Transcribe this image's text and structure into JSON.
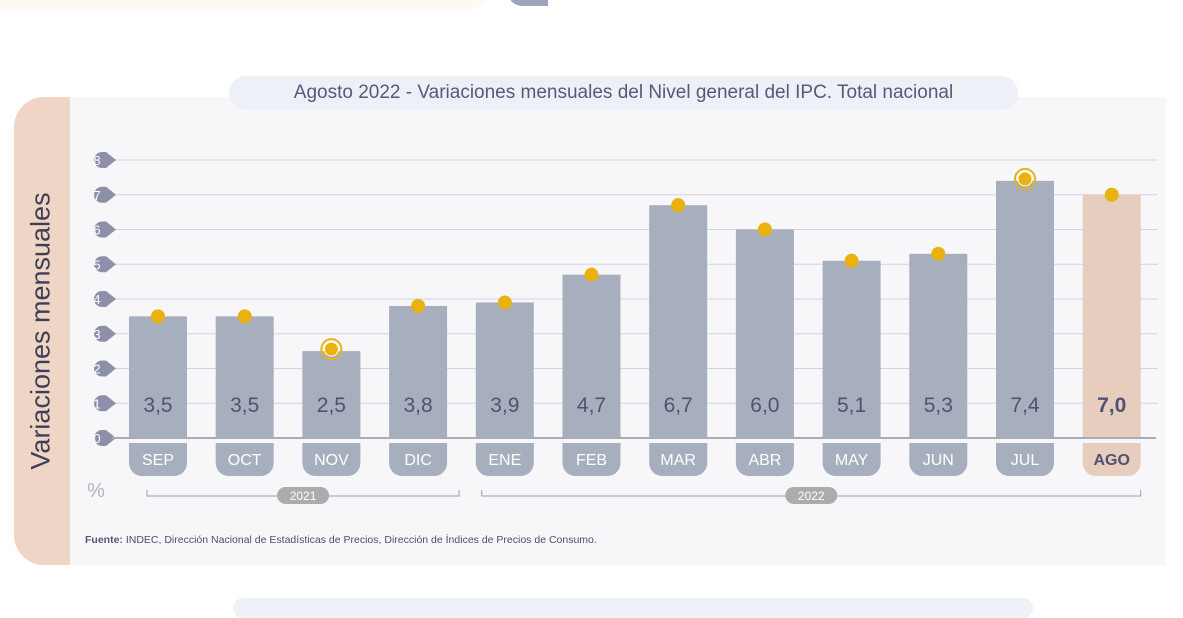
{
  "chart_data": {
    "type": "bar",
    "title": "Agosto 2022 - Variaciones mensuales del Nivel general del IPC. Total nacional",
    "ylabel": "Variaciones mensuales",
    "yunit": "%",
    "ylim": [
      0,
      8
    ],
    "yticks": [
      "0",
      "1",
      "2",
      "3",
      "4",
      "5",
      "6",
      "7",
      "8"
    ],
    "grid": true,
    "categories": [
      "SEP",
      "OCT",
      "NOV",
      "DIC",
      "ENE",
      "FEB",
      "MAR",
      "ABR",
      "MAY",
      "JUN",
      "JUL",
      "AGO"
    ],
    "values": [
      3.5,
      3.5,
      2.5,
      3.8,
      3.9,
      4.7,
      6.7,
      6.0,
      5.1,
      5.3,
      7.4,
      7.0
    ],
    "value_labels": [
      "3,5",
      "3,5",
      "2,5",
      "3,8",
      "3,9",
      "4,7",
      "6,7",
      "6,0",
      "5,1",
      "5,3",
      "7,4",
      "7,0"
    ],
    "highlight_markers": [
      "NOV",
      "JUL"
    ],
    "highlight_category": "AGO",
    "year_groups": [
      {
        "label": "2021",
        "from": "SEP",
        "to": "DIC"
      },
      {
        "label": "2022",
        "from": "ENE",
        "to": "AGO"
      }
    ],
    "colors": {
      "bar": "#a7afbe",
      "highlight_bar": "#e6cdbd",
      "marker": "#e9b20e",
      "tick_badge": "#8e90aa"
    }
  },
  "source": {
    "label": "Fuente:",
    "text": " INDEC, Dirección Nacional de Estadísticas de Precios, Dirección de Índices de Precios de Consumo."
  }
}
